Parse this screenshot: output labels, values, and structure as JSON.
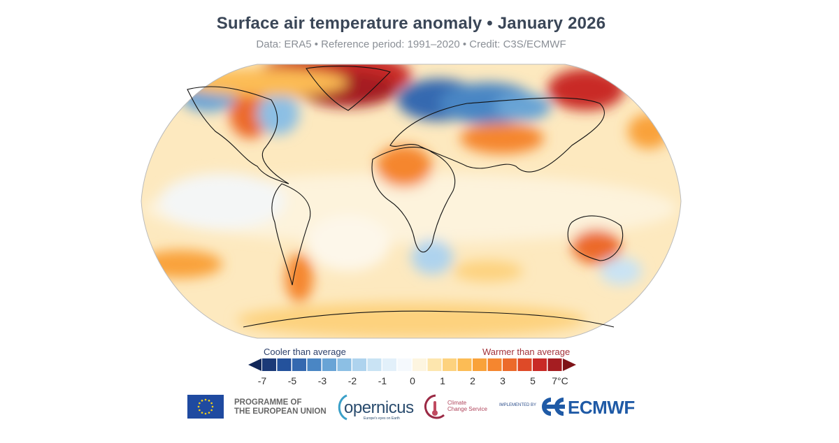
{
  "title": "Surface air temperature anomaly • January 2026",
  "subtitle": "Data: ERA5 • Reference period: 1991–2020 • Credit: C3S/ECMWF",
  "map": {
    "projection": "Robinson",
    "variable": "Surface air temperature anomaly",
    "units": "°C"
  },
  "legend": {
    "cool_label": "Cooler than average",
    "warm_label": "Warmer than average",
    "ticks": [
      "-7",
      "-5",
      "-3",
      "-2",
      "-1",
      "0",
      "1",
      "2",
      "3",
      "5",
      "7°C"
    ],
    "colors": [
      "#1b3a78",
      "#24529c",
      "#3569b0",
      "#4a86c4",
      "#69a4d6",
      "#8cbfe4",
      "#aed3ee",
      "#c9e3f4",
      "#e2f0fa",
      "#f5f9fd",
      "#fdf5e0",
      "#fde6ae",
      "#fdd27e",
      "#fcbc55",
      "#f9a23a",
      "#f5862f",
      "#ec6a2b",
      "#de4a28",
      "#c92a26",
      "#a51d21"
    ],
    "low_arrow_color": "#12285a",
    "high_arrow_color": "#7e1418"
  },
  "logos": {
    "eu_text_1": "PROGRAMME OF",
    "eu_text_2": "THE EUROPEAN UNION",
    "copernicus": "opernicus",
    "copernicus_c": "C",
    "copernicus_sub": "Europe's eyes on Earth",
    "c3s_1": "Climate",
    "c3s_2": "Change Service",
    "implemented_by": "IMPLEMENTED BY",
    "ecmwf": "ECMWF"
  }
}
